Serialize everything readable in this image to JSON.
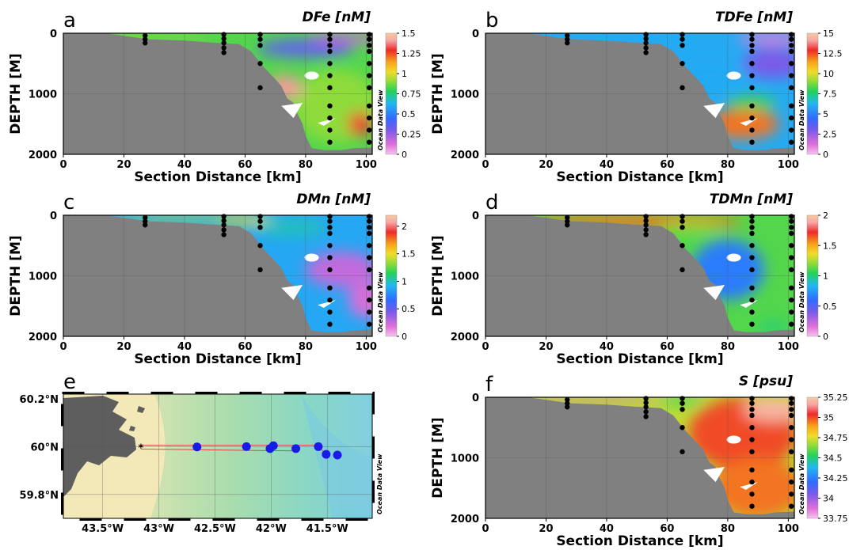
{
  "colors": {
    "bathymetry": "#808080",
    "land": "#5e5e5e",
    "station": "#000000",
    "map_station": "#1a1ae6",
    "track": "#d94040"
  },
  "watermark": "Ocean Data View",
  "chart_data": [
    {
      "panel": "a",
      "type": "heatmap",
      "title": "DFe [nM]",
      "xlabel": "Section Distance [km]",
      "ylabel": "DEPTH [M]",
      "xlim": [
        0,
        102
      ],
      "ylim": [
        2000,
        0
      ],
      "xticks": [
        "0",
        "20",
        "40",
        "60",
        "80",
        "100"
      ],
      "yticks": [
        "0",
        "1000",
        "2000"
      ],
      "colorbar": {
        "ticks": [
          "1.5",
          "1.25",
          "1",
          "0.75",
          "0.5",
          "0.25",
          "0"
        ],
        "range": [
          0,
          1.5
        ],
        "palette": "odv"
      },
      "stations": [
        27,
        53,
        65,
        88,
        101
      ],
      "blobs": [
        {
          "x": 90,
          "y": 1200,
          "rx": 14,
          "ry": 600,
          "v": 0.9
        },
        {
          "x": 73,
          "y": 900,
          "rx": 6,
          "ry": 200,
          "v": 1.4
        },
        {
          "x": 98,
          "y": 1500,
          "rx": 4,
          "ry": 200,
          "v": 1.3
        },
        {
          "x": 80,
          "y": 250,
          "rx": 16,
          "ry": 150,
          "v": 0.35
        },
        {
          "x": 95,
          "y": 80,
          "rx": 14,
          "ry": 80,
          "v": 0.15
        },
        {
          "x": 30,
          "y": 50,
          "rx": 18,
          "ry": 60,
          "v": 0.9
        }
      ]
    },
    {
      "panel": "b",
      "type": "heatmap",
      "title": "TDFe [nM]",
      "xlabel": "Section Distance [km]",
      "ylabel": "DEPTH [M]",
      "xlim": [
        0,
        102
      ],
      "ylim": [
        2000,
        0
      ],
      "xticks": [
        "0",
        "20",
        "40",
        "60",
        "80",
        "100"
      ],
      "yticks": [
        "0",
        "1000",
        "2000"
      ],
      "colorbar": {
        "ticks": [
          "15",
          "12.5",
          "10",
          "7.5",
          "5",
          "2.5",
          "0"
        ],
        "range": [
          0,
          15
        ],
        "palette": "odv"
      },
      "stations": [
        27,
        53,
        65,
        88,
        101
      ],
      "blobs": [
        {
          "x": 85,
          "y": 1500,
          "rx": 12,
          "ry": 250,
          "v": 12
        },
        {
          "x": 88,
          "y": 1150,
          "rx": 8,
          "ry": 120,
          "v": 8
        },
        {
          "x": 95,
          "y": 80,
          "rx": 12,
          "ry": 100,
          "v": 1
        },
        {
          "x": 95,
          "y": 500,
          "rx": 10,
          "ry": 250,
          "v": 3
        },
        {
          "x": 75,
          "y": 700,
          "rx": 10,
          "ry": 200,
          "v": 6
        }
      ]
    },
    {
      "panel": "c",
      "type": "heatmap",
      "title": "DMn [nM]",
      "xlabel": "Section Distance [km]",
      "ylabel": "DEPTH [M]",
      "xlim": [
        0,
        102
      ],
      "ylim": [
        2000,
        0
      ],
      "xticks": [
        "0",
        "20",
        "40",
        "60",
        "80",
        "100"
      ],
      "yticks": [
        "0",
        "1000",
        "2000"
      ],
      "colorbar": {
        "ticks": [
          "2",
          "1.5",
          "1",
          "0.5",
          "0"
        ],
        "range": [
          0,
          2.2
        ],
        "palette": "odv"
      },
      "stations": [
        27,
        53,
        65,
        88,
        101
      ],
      "blobs": [
        {
          "x": 40,
          "y": 40,
          "rx": 25,
          "ry": 60,
          "v": 1.4
        },
        {
          "x": 60,
          "y": 80,
          "rx": 10,
          "ry": 80,
          "v": 1.5
        },
        {
          "x": 75,
          "y": 200,
          "rx": 12,
          "ry": 150,
          "v": 1.0
        },
        {
          "x": 92,
          "y": 900,
          "rx": 12,
          "ry": 300,
          "v": 0.25
        },
        {
          "x": 100,
          "y": 1400,
          "rx": 6,
          "ry": 300,
          "v": 0.2
        }
      ]
    },
    {
      "panel": "d",
      "type": "heatmap",
      "title": "TDMn [nM]",
      "xlabel": "Section Distance [km]",
      "ylabel": "DEPTH [M]",
      "xlim": [
        0,
        102
      ],
      "ylim": [
        2000,
        0
      ],
      "xticks": [
        "0",
        "20",
        "40",
        "60",
        "80",
        "100"
      ],
      "yticks": [
        "0",
        "1000",
        "2000"
      ],
      "colorbar": {
        "ticks": [
          "2",
          "1.5",
          "1",
          "0.5",
          "0"
        ],
        "range": [
          0,
          2
        ],
        "palette": "odv"
      },
      "stations": [
        27,
        53,
        65,
        88,
        101
      ],
      "blobs": [
        {
          "x": 50,
          "y": 100,
          "rx": 35,
          "ry": 120,
          "v": 1.6
        },
        {
          "x": 68,
          "y": 200,
          "rx": 10,
          "ry": 80,
          "v": 1.2
        },
        {
          "x": 80,
          "y": 900,
          "rx": 12,
          "ry": 500,
          "v": 0.65
        },
        {
          "x": 95,
          "y": 1850,
          "rx": 5,
          "ry": 100,
          "v": 1.0
        }
      ]
    },
    {
      "panel": "e",
      "type": "map",
      "xticks": [
        "43.5°W",
        "43°W",
        "42.5°W",
        "42°W",
        "41.5°W"
      ],
      "yticks": [
        "60.2°N",
        "60°N",
        "59.8°N"
      ],
      "lon": [
        -43.85,
        -41.1
      ],
      "lat": [
        59.7,
        60.22
      ],
      "stations": [
        {
          "lon": -42.66,
          "lat": 59.999
        },
        {
          "lon": -42.22,
          "lat": 60.0
        },
        {
          "lon": -42.01,
          "lat": 59.992
        },
        {
          "lon": -41.98,
          "lat": 60.004
        },
        {
          "lon": -41.78,
          "lat": 59.992
        },
        {
          "lon": -41.58,
          "lat": 60.0
        },
        {
          "lon": -41.51,
          "lat": 59.968
        },
        {
          "lon": -41.41,
          "lat": 59.965
        }
      ],
      "track_start": {
        "lon": -43.16,
        "lat": 60.0
      }
    },
    {
      "panel": "f",
      "type": "heatmap",
      "title": "S [psu]",
      "xlabel": "Section Distance [km]",
      "ylabel": "DEPTH [M]",
      "xlim": [
        0,
        102
      ],
      "ylim": [
        2000,
        0
      ],
      "xticks": [
        "0",
        "20",
        "40",
        "60",
        "80",
        "100"
      ],
      "yticks": [
        "0",
        "1000",
        "2000"
      ],
      "colorbar": {
        "ticks": [
          "35.25",
          "35",
          "34.75",
          "34.5",
          "34.25",
          "34",
          "33.75"
        ],
        "range": [
          33.75,
          35.25
        ],
        "palette": "odv"
      },
      "stations": [
        27,
        53,
        65,
        88,
        101
      ],
      "blobs": [
        {
          "x": 85,
          "y": 600,
          "rx": 18,
          "ry": 600,
          "v": 35.0
        },
        {
          "x": 95,
          "y": 200,
          "rx": 10,
          "ry": 200,
          "v": 35.2
        },
        {
          "x": 35,
          "y": 30,
          "rx": 25,
          "ry": 40,
          "v": 33.9
        },
        {
          "x": 65,
          "y": 60,
          "rx": 8,
          "ry": 60,
          "v": 34.5
        },
        {
          "x": 90,
          "y": 1500,
          "rx": 15,
          "ry": 500,
          "v": 34.95
        }
      ]
    }
  ]
}
